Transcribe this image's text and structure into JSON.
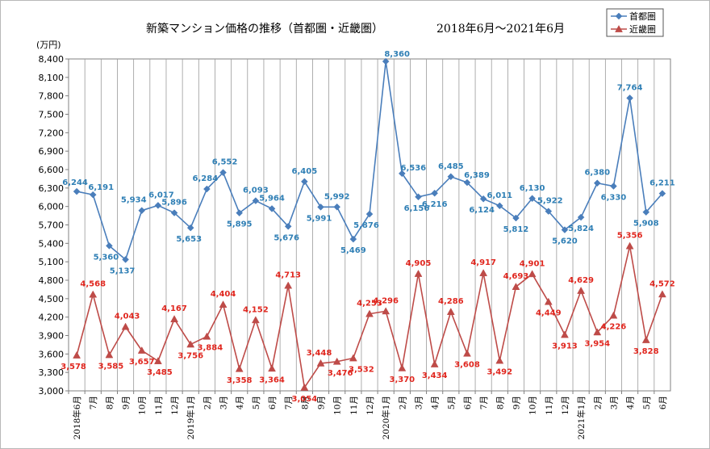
{
  "chart_data": {
    "type": "line",
    "title": "新築マンション価格の推移（首都圏・近畿圏）",
    "subtitle": "2018年6月～2021年6月",
    "ylabel": "(万円)",
    "ylim": [
      3000,
      8400
    ],
    "ytick_step": 300,
    "categories": [
      "2018年6月",
      "7月",
      "8月",
      "9月",
      "10月",
      "11月",
      "12月",
      "2019年1月",
      "2月",
      "3月",
      "4月",
      "5月",
      "6月",
      "7月",
      "8月",
      "9月",
      "10月",
      "11月",
      "12月",
      "2020年1月",
      "2月",
      "3月",
      "4月",
      "5月",
      "6月",
      "7月",
      "8月",
      "9月",
      "10月",
      "11月",
      "12月",
      "2021年1月",
      "2月",
      "3月",
      "4月",
      "5月",
      "6月"
    ],
    "series": [
      {
        "name": "首都圏",
        "color": "#4a7ebb",
        "label_color": "#2f7fb5",
        "marker": "diamond",
        "values": [
          6244,
          6191,
          5360,
          5137,
          5934,
          6017,
          5896,
          5653,
          6284,
          6552,
          5895,
          6093,
          5964,
          5676,
          6405,
          5991,
          5992,
          5469,
          5876,
          8360,
          6536,
          6156,
          6216,
          6485,
          6389,
          6124,
          6011,
          5812,
          6130,
          5922,
          5620,
          5824,
          6380,
          6330,
          7764,
          5908,
          6211
        ],
        "labels": [
          "6,244",
          "6,191",
          "5,360",
          "5,137",
          "5,934",
          "6,017",
          "5,896",
          "5,653",
          "6,284",
          "6,552",
          "5,895",
          "6,093",
          "5,964",
          "5,676",
          "6,405",
          "5,991",
          "5,992",
          "5,469",
          "5,876",
          "8,360",
          "6,536",
          "6,156",
          "6,216",
          "6,485",
          "6,389",
          "6,124",
          "6,011",
          "5,812",
          "6,130",
          "5,922",
          "5,620",
          "5,824",
          "6,380",
          "6,330",
          "7,764",
          "5,908",
          "6,211"
        ]
      },
      {
        "name": "近畿圏",
        "color": "#be4b48",
        "label_color": "#e0261e",
        "marker": "triangle",
        "values": [
          3578,
          4568,
          3585,
          4043,
          3657,
          3485,
          4167,
          3756,
          3884,
          4404,
          3358,
          4152,
          3364,
          4713,
          3054,
          3448,
          3476,
          3532,
          4253,
          4296,
          3370,
          4905,
          3434,
          4286,
          3608,
          4917,
          3492,
          4693,
          4901,
          4449,
          3913,
          4629,
          3954,
          4226,
          5356,
          3828,
          4572
        ],
        "labels": [
          "3,578",
          "4,568",
          "3,585",
          "4,043",
          "3,657",
          "3,485",
          "4,167",
          "3,756",
          "3,884",
          "4,404",
          "3,358",
          "4,152",
          "3,364",
          "4,713",
          "3,054",
          "3,448",
          "3,476",
          "3,532",
          "4,253",
          "4,296",
          "3,370",
          "4,905",
          "3,434",
          "4,286",
          "3,608",
          "4,917",
          "3,492",
          "4,693",
          "4,901",
          "4,449",
          "3,913",
          "4,629",
          "3,954",
          "4,226",
          "5,356",
          "3,828",
          "4,572"
        ]
      }
    ],
    "yticks": [
      "3,000",
      "3,300",
      "3,600",
      "3,900",
      "4,200",
      "4,500",
      "4,800",
      "5,100",
      "5,400",
      "5,700",
      "6,000",
      "6,300",
      "6,600",
      "6,900",
      "7,200",
      "7,500",
      "7,800",
      "8,100",
      "8,400"
    ],
    "grid": "vertical",
    "legend": "top-right"
  }
}
